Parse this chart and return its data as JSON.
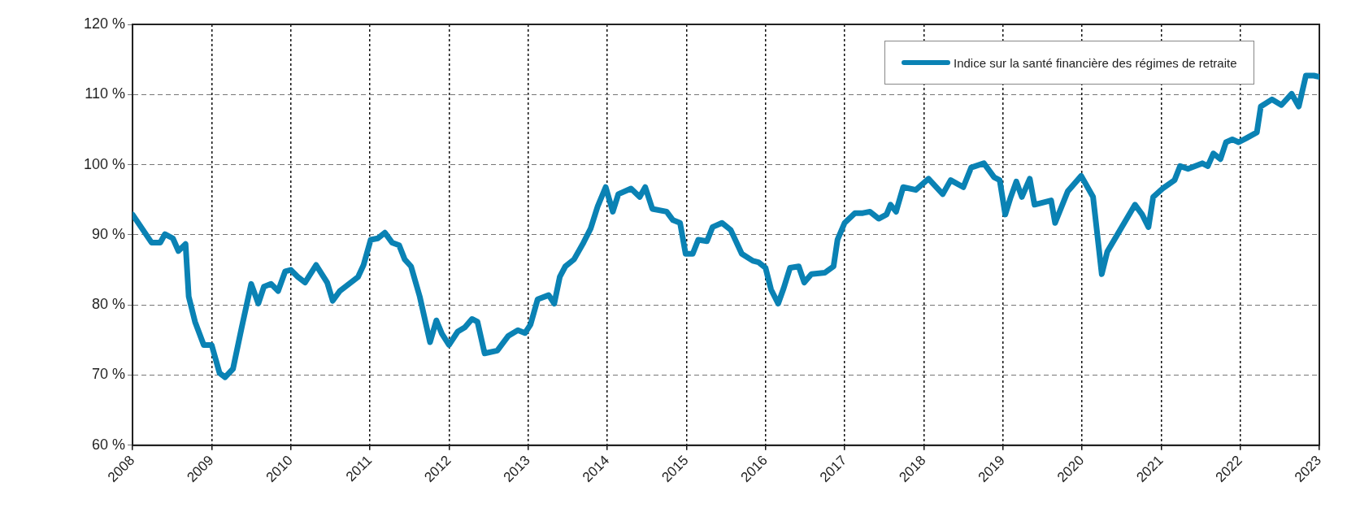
{
  "chart_data": {
    "type": "line",
    "legend": "top right",
    "grid": true,
    "marker": "none",
    "line_style": "solid",
    "xlim": [
      2008,
      2023
    ],
    "xticks": [
      2008,
      2009,
      2010,
      2011,
      2012,
      2013,
      2014,
      2015,
      2016,
      2017,
      2018,
      2019,
      2020,
      2021,
      2022,
      2023
    ],
    "ylim": [
      60,
      120
    ],
    "yticks": [
      {
        "value": 60,
        "label": "60 %"
      },
      {
        "value": 70,
        "label": "70 %"
      },
      {
        "value": 80,
        "label": "80 %"
      },
      {
        "value": 90,
        "label": "90 %"
      },
      {
        "value": 100,
        "label": "100 %"
      },
      {
        "value": 110,
        "label": "110 %"
      },
      {
        "value": 120,
        "label": "120 %"
      }
    ],
    "series": [
      {
        "name": "Indice sur la santé financière des régimes de retraite",
        "color": "#0a82b4",
        "x": [
          2008,
          2008.12,
          2008.24,
          2008.35,
          2008.41,
          2008.51,
          2008.58,
          2008.67,
          2008.71,
          2008.79,
          2008.9,
          2009,
          2009.1,
          2009.17,
          2009.27,
          2009.38,
          2009.5,
          2009.59,
          2009.66,
          2009.75,
          2009.84,
          2009.93,
          2010,
          2010.09,
          2010.18,
          2010.32,
          2010.46,
          2010.53,
          2010.62,
          2010.85,
          2010.92,
          2011.01,
          2011.1,
          2011.19,
          2011.28,
          2011.37,
          2011.44,
          2011.52,
          2011.63,
          2011.76,
          2011.84,
          2011.91,
          2012,
          2012.11,
          2012.2,
          2012.29,
          2012.36,
          2012.45,
          2012.61,
          2012.75,
          2012.87,
          2012.96,
          2013.03,
          2013.12,
          2013.26,
          2013.33,
          2013.4,
          2013.47,
          2013.58,
          2013.7,
          2013.79,
          2013.88,
          2013.98,
          2014.07,
          2014.14,
          2014.3,
          2014.41,
          2014.48,
          2014.57,
          2014.75,
          2014.83,
          2014.92,
          2014.99,
          2015.08,
          2015.15,
          2015.26,
          2015.33,
          2015.45,
          2015.56,
          2015.7,
          2015.84,
          2015.91,
          2016,
          2016.07,
          2016.16,
          2016.23,
          2016.31,
          2016.42,
          2016.49,
          2016.58,
          2016.75,
          2016.86,
          2016.91,
          2017,
          2017.13,
          2017.23,
          2017.32,
          2017.43,
          2017.53,
          2017.58,
          2017.65,
          2017.74,
          2017.9,
          2018.06,
          2018.24,
          2018.34,
          2018.5,
          2018.6,
          2018.76,
          2018.89,
          2018.96,
          2019.03,
          2019.1,
          2019.17,
          2019.24,
          2019.34,
          2019.4,
          2019.61,
          2019.66,
          2019.82,
          2019.99,
          2020.14,
          2020.25,
          2020.32,
          2020.67,
          2020.76,
          2020.84,
          2020.9,
          2021.02,
          2021.17,
          2021.24,
          2021.34,
          2021.52,
          2021.59,
          2021.66,
          2021.75,
          2021.82,
          2021.9,
          2021.98,
          2022.08,
          2022.21,
          2022.26,
          2022.4,
          2022.52,
          2022.65,
          2022.74,
          2022.83,
          2022.93,
          2023
        ],
        "values": [
          92.9,
          90.9,
          88.9,
          88.9,
          90.1,
          89.5,
          87.7,
          88.7,
          81.2,
          77.6,
          74.3,
          74.3,
          70.3,
          69.7,
          70.9,
          76.8,
          83,
          80.2,
          82.6,
          83,
          82,
          84.8,
          85,
          84,
          83.2,
          85.7,
          83.2,
          80.6,
          82,
          84,
          85.7,
          89.3,
          89.5,
          90.3,
          88.9,
          88.5,
          86.5,
          85.5,
          81.2,
          74.7,
          77.8,
          75.9,
          74.3,
          76.2,
          76.8,
          78,
          77.6,
          73.1,
          73.5,
          75.6,
          76.4,
          76,
          77.2,
          80.8,
          81.4,
          80.2,
          84,
          85.5,
          86.5,
          88.9,
          90.9,
          94.1,
          96.8,
          93.3,
          95.8,
          96.6,
          95.4,
          96.8,
          93.7,
          93.3,
          92.1,
          91.7,
          87.3,
          87.3,
          89.3,
          89.1,
          91.1,
          91.7,
          90.7,
          87.3,
          86.3,
          86.1,
          85.3,
          82.2,
          80.2,
          82.4,
          85.3,
          85.5,
          83.2,
          84.4,
          84.6,
          85.5,
          89.3,
          91.7,
          93.1,
          93.1,
          93.3,
          92.3,
          92.9,
          94.3,
          93.3,
          96.8,
          96.4,
          98,
          95.8,
          97.8,
          96.8,
          99.6,
          100.2,
          98.2,
          97.8,
          92.9,
          95.4,
          97.6,
          95.4,
          98,
          94.3,
          94.9,
          91.7,
          96.2,
          98.4,
          95.4,
          84.4,
          87.6,
          94.3,
          92.9,
          91.1,
          95.4,
          96.6,
          97.8,
          99.8,
          99.4,
          100.2,
          99.8,
          101.6,
          100.8,
          103.2,
          103.6,
          103.2,
          103.8,
          104.6,
          108.3,
          109.3,
          108.5,
          110.1,
          108.3,
          112.7,
          112.7,
          112.5
        ]
      }
    ]
  }
}
